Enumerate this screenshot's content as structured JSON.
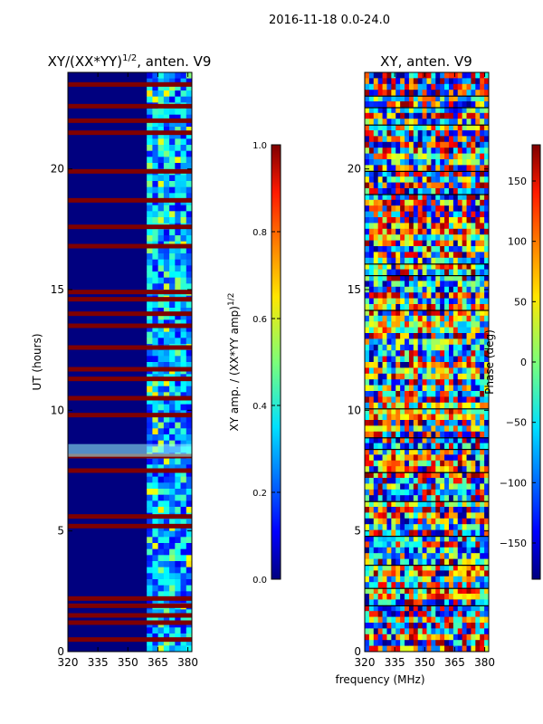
{
  "suptitle": "2016-11-18 0.0-24.0",
  "chart_data": [
    {
      "type": "heatmap",
      "title_main": "XY/(XX*YY)",
      "title_sup": "1/2",
      "title_suffix": ", anten. V9",
      "ylabel": "UT (hours)",
      "xlim": [
        320,
        382
      ],
      "ylim": [
        0,
        24
      ],
      "xticks": [
        320,
        335,
        350,
        365,
        380
      ],
      "yticks": [
        0,
        5,
        10,
        15,
        20
      ],
      "zero_band_mhz": [
        320,
        359.5
      ],
      "bright_rows_ut": [
        0.5,
        1.2,
        1.5,
        1.9,
        2.2,
        5.2,
        5.6,
        7.5,
        8.1,
        9.8,
        10.5,
        11.3,
        11.7,
        12.6,
        13.5,
        14.0,
        14.6,
        14.9,
        16.8,
        17.6,
        18.7,
        19.9,
        21.5,
        22.0,
        22.6,
        23.5
      ],
      "colorbar": {
        "label_main": "XY amp. / (XX*YY amp)",
        "label_sup": "1/2",
        "ticks": [
          "0.0",
          "0.2",
          "0.4",
          "0.6",
          "0.8",
          "1.0"
        ],
        "range": [
          0,
          1
        ]
      }
    },
    {
      "type": "heatmap",
      "title": "XY, anten. V9",
      "xlabel": "frequency (MHz)",
      "xlim": [
        320,
        382
      ],
      "ylim": [
        0,
        24
      ],
      "xticks": [
        320,
        335,
        350,
        365,
        380
      ],
      "yticks": [
        0,
        5,
        10,
        15,
        20
      ],
      "colorbar": {
        "label": "Phase (deg)",
        "ticks": [
          "150",
          "100",
          "50",
          "0",
          "−50",
          "−100",
          "−150"
        ],
        "tick_values": [
          150,
          100,
          50,
          0,
          -50,
          -100,
          -150
        ],
        "range": [
          -180,
          180
        ]
      }
    }
  ]
}
